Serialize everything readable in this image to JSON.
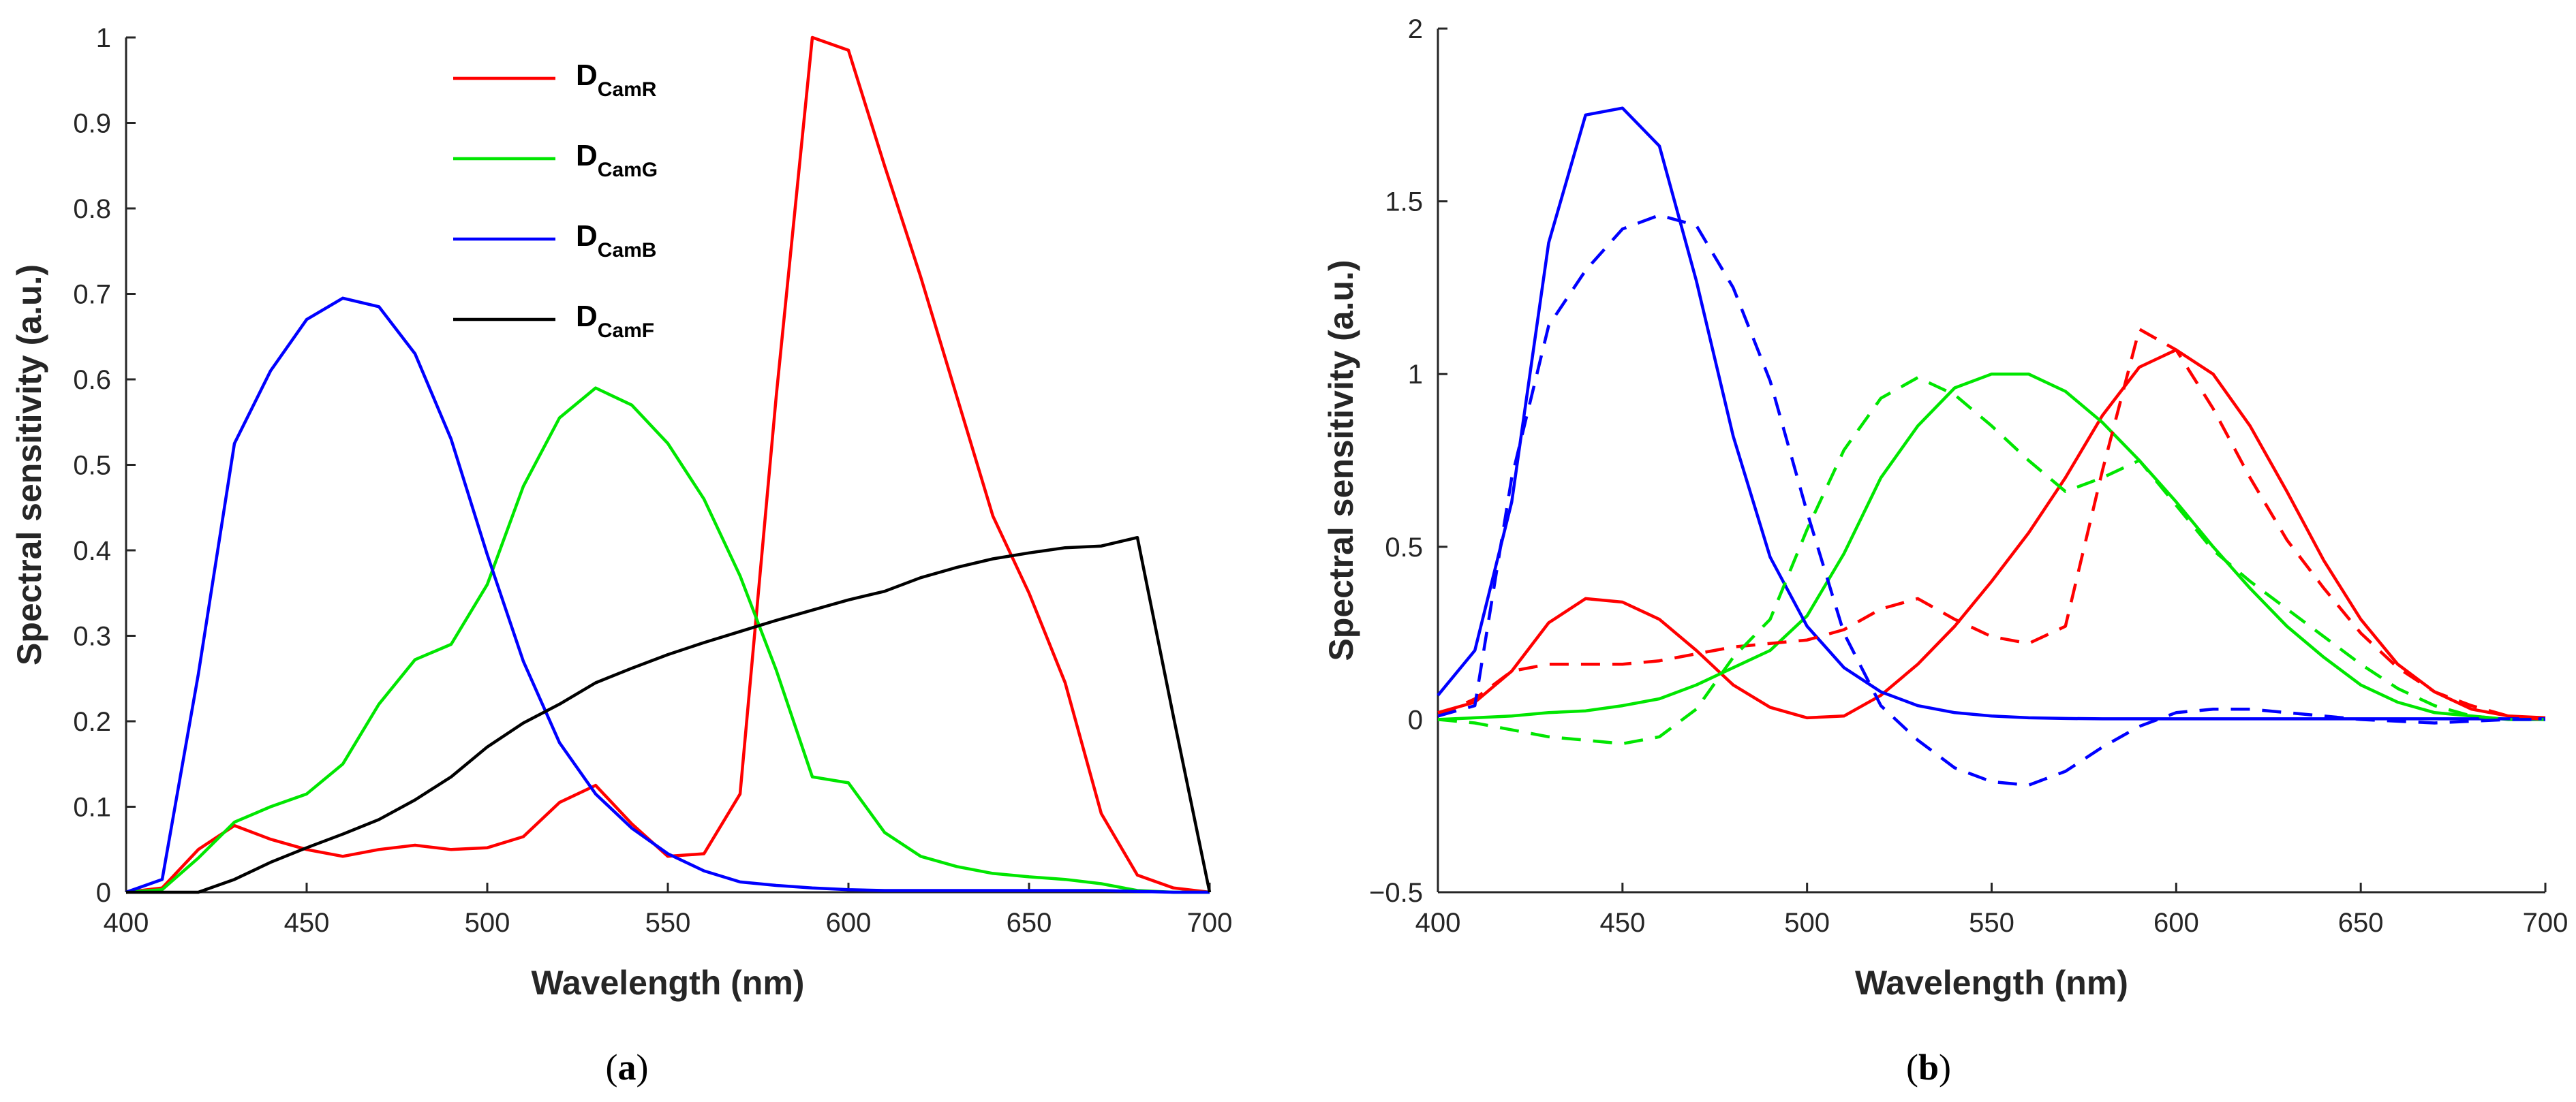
{
  "chart_data": [
    {
      "panel": "a",
      "type": "line",
      "caption_open": "(",
      "caption_letter": "a",
      "caption_close": ")",
      "xlabel": "Wavelength (nm)",
      "ylabel": "Spectral sensitivity (a.u.)",
      "xlim": [
        400,
        700
      ],
      "ylim": [
        0,
        1
      ],
      "xticks": [
        400,
        450,
        500,
        550,
        600,
        650,
        700
      ],
      "xtick_labels": [
        "400",
        "450",
        "500",
        "550",
        "600",
        "650",
        "700"
      ],
      "yticks": [
        0,
        0.1,
        0.2,
        0.3,
        0.4,
        0.5,
        0.6,
        0.7,
        0.8,
        0.9,
        1
      ],
      "ytick_labels": [
        "0",
        "0.1",
        "0.2",
        "0.3",
        "0.4",
        "0.5",
        "0.6",
        "0.7",
        "0.8",
        "0.9",
        "1"
      ],
      "legend_position": "top-center",
      "x": [
        400,
        410,
        420,
        430,
        440,
        450,
        460,
        470,
        480,
        490,
        500,
        510,
        520,
        530,
        540,
        550,
        560,
        570,
        580,
        590,
        600,
        610,
        620,
        630,
        640,
        650,
        660,
        670,
        680,
        690,
        700
      ],
      "series": [
        {
          "name": "D",
          "subscript": "CamR",
          "color": "#ff0000",
          "style": "solid",
          "values": [
            0,
            0.005,
            0.05,
            0.078,
            0.062,
            0.05,
            0.042,
            0.05,
            0.055,
            0.05,
            0.052,
            0.065,
            0.105,
            0.125,
            0.08,
            0.042,
            0.045,
            0.115,
            0.58,
            1.0,
            0.985,
            0.85,
            0.72,
            0.58,
            0.44,
            0.35,
            0.245,
            0.092,
            0.02,
            0.005,
            0
          ]
        },
        {
          "name": "D",
          "subscript": "CamG",
          "color": "#00e600",
          "style": "solid",
          "values": [
            0,
            0.003,
            0.04,
            0.082,
            0.1,
            0.115,
            0.15,
            0.22,
            0.272,
            0.29,
            0.36,
            0.475,
            0.555,
            0.59,
            0.57,
            0.525,
            0.46,
            0.37,
            0.26,
            0.135,
            0.128,
            0.07,
            0.042,
            0.03,
            0.022,
            0.018,
            0.015,
            0.01,
            0.002,
            0,
            0
          ]
        },
        {
          "name": "D",
          "subscript": "CamB",
          "color": "#0000ff",
          "style": "solid",
          "values": [
            0,
            0.015,
            0.255,
            0.525,
            0.61,
            0.67,
            0.695,
            0.685,
            0.63,
            0.53,
            0.395,
            0.27,
            0.175,
            0.115,
            0.075,
            0.045,
            0.025,
            0.012,
            0.008,
            0.005,
            0.003,
            0.002,
            0.002,
            0.002,
            0.002,
            0.002,
            0.002,
            0.002,
            0.001,
            0,
            0
          ]
        },
        {
          "name": "D",
          "subscript": "CamF",
          "color": "#000000",
          "style": "solid",
          "values": [
            0,
            0,
            0,
            0.015,
            0.035,
            0.052,
            0.068,
            0.085,
            0.108,
            0.135,
            0.17,
            0.198,
            0.22,
            0.245,
            0.262,
            0.278,
            0.292,
            0.305,
            0.318,
            0.33,
            0.342,
            0.352,
            0.368,
            0.38,
            0.39,
            0.397,
            0.403,
            0.405,
            0.415,
            0.205,
            0
          ]
        }
      ]
    },
    {
      "panel": "b",
      "type": "line",
      "caption_open": "(",
      "caption_letter": "b",
      "caption_close": ")",
      "xlabel": "Wavelength (nm)",
      "ylabel": "Spectral sensitivity (a.u.)",
      "xlim": [
        400,
        700
      ],
      "ylim": [
        -0.5,
        2
      ],
      "xticks": [
        400,
        450,
        500,
        550,
        600,
        650,
        700
      ],
      "xtick_labels": [
        "400",
        "450",
        "500",
        "550",
        "600",
        "650",
        "700"
      ],
      "yticks": [
        -0.5,
        0,
        0.5,
        1,
        1.5,
        2
      ],
      "ytick_labels": [
        "−0.5",
        "0",
        "0.5",
        "1",
        "1.5",
        "2"
      ],
      "x": [
        400,
        410,
        420,
        430,
        440,
        450,
        460,
        470,
        480,
        490,
        500,
        510,
        520,
        530,
        540,
        550,
        560,
        570,
        580,
        590,
        600,
        610,
        620,
        630,
        640,
        650,
        660,
        670,
        680,
        690,
        700
      ],
      "series": [
        {
          "name": "R solid",
          "color": "#ff0000",
          "style": "solid",
          "values": [
            0.02,
            0.05,
            0.14,
            0.28,
            0.35,
            0.34,
            0.29,
            0.2,
            0.1,
            0.035,
            0.005,
            0.01,
            0.07,
            0.16,
            0.27,
            0.4,
            0.54,
            0.7,
            0.88,
            1.02,
            1.07,
            1.0,
            0.85,
            0.66,
            0.46,
            0.29,
            0.16,
            0.08,
            0.03,
            0.01,
            0.005
          ]
        },
        {
          "name": "G solid",
          "color": "#00e600",
          "style": "solid",
          "values": [
            0,
            0.005,
            0.01,
            0.02,
            0.025,
            0.04,
            0.06,
            0.1,
            0.15,
            0.2,
            0.3,
            0.48,
            0.7,
            0.85,
            0.96,
            1.0,
            1.0,
            0.95,
            0.86,
            0.75,
            0.63,
            0.5,
            0.38,
            0.27,
            0.18,
            0.1,
            0.05,
            0.02,
            0.01,
            0,
            0
          ]
        },
        {
          "name": "B solid",
          "color": "#0000ff",
          "style": "solid",
          "values": [
            0.07,
            0.2,
            0.63,
            1.38,
            1.75,
            1.77,
            1.66,
            1.27,
            0.82,
            0.47,
            0.27,
            0.15,
            0.08,
            0.04,
            0.02,
            0.01,
            0.005,
            0.003,
            0.002,
            0.002,
            0.002,
            0.002,
            0.002,
            0.002,
            0.002,
            0.002,
            0.002,
            0.002,
            0.002,
            0.002,
            0.002
          ]
        },
        {
          "name": "R dashed",
          "color": "#ff0000",
          "style": "dashed",
          "values": [
            0.01,
            0.06,
            0.14,
            0.16,
            0.16,
            0.16,
            0.17,
            0.19,
            0.21,
            0.22,
            0.23,
            0.26,
            0.32,
            0.35,
            0.29,
            0.24,
            0.22,
            0.27,
            0.72,
            1.13,
            1.07,
            0.9,
            0.7,
            0.52,
            0.38,
            0.25,
            0.15,
            0.08,
            0.04,
            0.01,
            0
          ]
        },
        {
          "name": "G dashed",
          "color": "#00e600",
          "style": "dashed",
          "values": [
            0,
            -0.01,
            -0.03,
            -0.05,
            -0.06,
            -0.07,
            -0.05,
            0.03,
            0.18,
            0.29,
            0.55,
            0.78,
            0.93,
            0.99,
            0.94,
            0.85,
            0.75,
            0.66,
            0.7,
            0.75,
            0.62,
            0.49,
            0.4,
            0.32,
            0.24,
            0.16,
            0.09,
            0.04,
            0.01,
            0,
            0
          ]
        },
        {
          "name": "B dashed",
          "color": "#0000ff",
          "style": "dashed",
          "values": [
            0.01,
            0.04,
            0.7,
            1.14,
            1.3,
            1.42,
            1.46,
            1.43,
            1.25,
            0.98,
            0.6,
            0.25,
            0.04,
            -0.06,
            -0.14,
            -0.18,
            -0.19,
            -0.15,
            -0.08,
            -0.02,
            0.02,
            0.03,
            0.03,
            0.02,
            0.01,
            0,
            -0.005,
            -0.01,
            -0.005,
            0,
            0
          ]
        }
      ]
    }
  ]
}
